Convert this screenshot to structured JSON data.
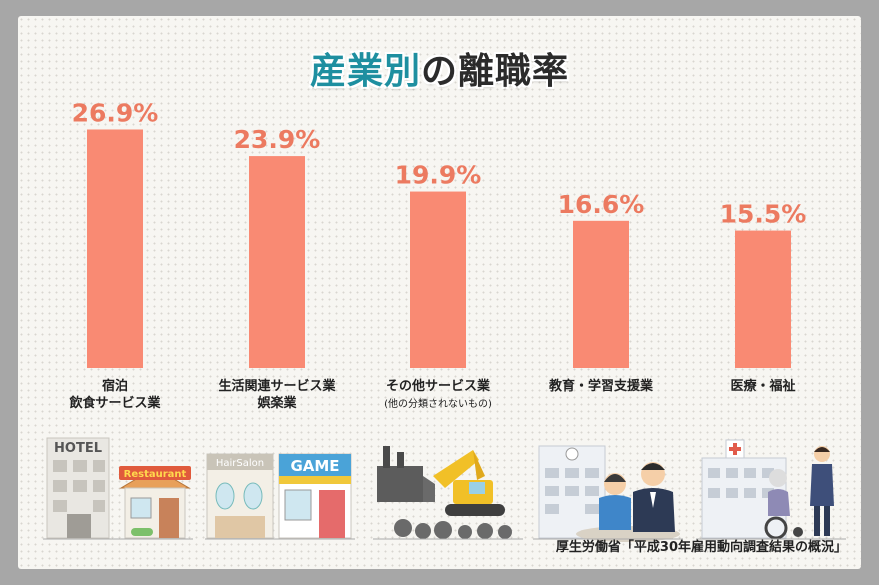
{
  "title": {
    "accent": "産業別",
    "rest": "の離職率"
  },
  "chart_data": {
    "type": "bar",
    "categories": [
      [
        "宿泊",
        "飲食サービス業"
      ],
      [
        "生活関連サービス業",
        "娯楽業"
      ],
      [
        "その他サービス業",
        "(他の分類されないもの)"
      ],
      [
        "教育・学習支援業"
      ],
      [
        "医療・福祉"
      ]
    ],
    "values": [
      26.9,
      23.9,
      19.9,
      16.6,
      15.5
    ],
    "value_labels": [
      "26.9%",
      "23.9%",
      "19.9%",
      "16.6%",
      "15.5%"
    ],
    "ylim": [
      0,
      30
    ],
    "bar_color": "#f98a73",
    "label_color": "#ec7a60"
  },
  "illustrations": {
    "hotel_sign": "HOTEL",
    "restaurant_sign": "Restaurant",
    "salon_sign": "HairSalon",
    "game_sign": "GAME"
  },
  "source": "厚生労働省「平成30年雇用動向調査結果の概況」"
}
